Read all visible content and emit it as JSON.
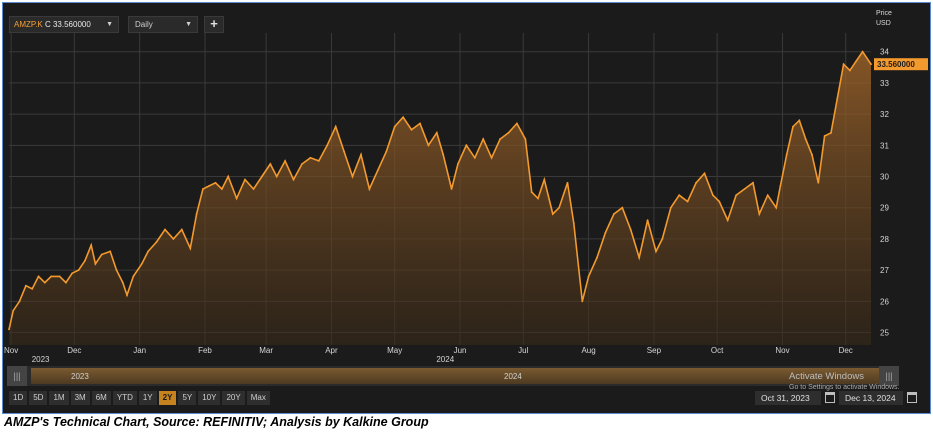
{
  "toolbar": {
    "ric": "AMZP.K",
    "close_label": "C 33.560000",
    "interval": "Daily",
    "add_label": "+"
  },
  "price_axis": {
    "title": "Price",
    "unit": "USD",
    "last_value": "33.560000"
  },
  "navigator": {
    "years": [
      "2023",
      "2024"
    ]
  },
  "watermark": {
    "title": "Activate Windows",
    "subtitle": "Go to Settings to activate Windows."
  },
  "range_buttons": [
    "1D",
    "5D",
    "1M",
    "3M",
    "6M",
    "YTD",
    "1Y",
    "2Y",
    "5Y",
    "10Y",
    "20Y",
    "Max"
  ],
  "active_range": "2Y",
  "date_from": "Oct 31, 2023",
  "date_to": "Dec 13, 2024",
  "caption": "AMZP's Technical Chart, Source: REFINITIV; Analysis by Kalkine Group",
  "colors": {
    "line": "#f39a2e",
    "background": "#1b1b1b",
    "grid": "#3a3a3a",
    "label_box": "#f39a2e"
  },
  "chart_data": {
    "type": "area",
    "title": "",
    "xlabel": "",
    "ylabel": "Price USD",
    "ylim": [
      24.6,
      34.6
    ],
    "yticks": [
      25,
      26,
      27,
      28,
      29,
      30,
      31,
      32,
      33,
      34
    ],
    "xlim": [
      "2023-10-31",
      "2024-12-13"
    ],
    "x_ticks": [
      {
        "label": "Nov",
        "date": "2023-11-01"
      },
      {
        "label": "Dec",
        "date": "2023-12-01"
      },
      {
        "label": "Jan",
        "date": "2024-01-01"
      },
      {
        "label": "Feb",
        "date": "2024-02-01"
      },
      {
        "label": "Mar",
        "date": "2024-03-01"
      },
      {
        "label": "Apr",
        "date": "2024-04-01"
      },
      {
        "label": "May",
        "date": "2024-05-01"
      },
      {
        "label": "Jun",
        "date": "2024-06-01"
      },
      {
        "label": "Jul",
        "date": "2024-07-01"
      },
      {
        "label": "Aug",
        "date": "2024-08-01"
      },
      {
        "label": "Sep",
        "date": "2024-09-01"
      },
      {
        "label": "Oct",
        "date": "2024-10-01"
      },
      {
        "label": "Nov",
        "date": "2024-11-01"
      },
      {
        "label": "Dec",
        "date": "2024-12-01"
      }
    ],
    "year_labels": [
      {
        "label": "2023",
        "date": "2023-11-15"
      },
      {
        "label": "2024",
        "date": "2024-05-25"
      }
    ],
    "series": [
      {
        "values": [
          [
            "2023-10-31",
            25.1
          ],
          [
            "2023-11-02",
            25.7
          ],
          [
            "2023-11-05",
            26.0
          ],
          [
            "2023-11-08",
            26.5
          ],
          [
            "2023-11-11",
            26.4
          ],
          [
            "2023-11-14",
            26.8
          ],
          [
            "2023-11-17",
            26.6
          ],
          [
            "2023-11-20",
            26.8
          ],
          [
            "2023-11-24",
            26.8
          ],
          [
            "2023-11-27",
            26.6
          ],
          [
            "2023-11-30",
            26.9
          ],
          [
            "2023-12-03",
            27.0
          ],
          [
            "2023-12-06",
            27.3
          ],
          [
            "2023-12-09",
            27.8
          ],
          [
            "2023-12-11",
            27.2
          ],
          [
            "2023-12-14",
            27.5
          ],
          [
            "2023-12-18",
            27.6
          ],
          [
            "2023-12-21",
            27.0
          ],
          [
            "2023-12-24",
            26.6
          ],
          [
            "2023-12-26",
            26.2
          ],
          [
            "2023-12-29",
            26.8
          ],
          [
            "2024-01-02",
            27.2
          ],
          [
            "2024-01-05",
            27.6
          ],
          [
            "2024-01-09",
            27.9
          ],
          [
            "2024-01-13",
            28.3
          ],
          [
            "2024-01-17",
            28.0
          ],
          [
            "2024-01-21",
            28.3
          ],
          [
            "2024-01-25",
            27.7
          ],
          [
            "2024-01-28",
            28.8
          ],
          [
            "2024-01-31",
            29.6
          ],
          [
            "2024-02-03",
            29.7
          ],
          [
            "2024-02-06",
            29.8
          ],
          [
            "2024-02-09",
            29.6
          ],
          [
            "2024-02-12",
            30.0
          ],
          [
            "2024-02-16",
            29.3
          ],
          [
            "2024-02-20",
            29.9
          ],
          [
            "2024-02-24",
            29.6
          ],
          [
            "2024-02-28",
            30.0
          ],
          [
            "2024-03-03",
            30.4
          ],
          [
            "2024-03-06",
            30.0
          ],
          [
            "2024-03-10",
            30.5
          ],
          [
            "2024-03-14",
            29.9
          ],
          [
            "2024-03-18",
            30.4
          ],
          [
            "2024-03-22",
            30.6
          ],
          [
            "2024-03-26",
            30.5
          ],
          [
            "2024-03-30",
            31.0
          ],
          [
            "2024-04-03",
            31.6
          ],
          [
            "2024-04-07",
            30.8
          ],
          [
            "2024-04-11",
            30.0
          ],
          [
            "2024-04-15",
            30.7
          ],
          [
            "2024-04-19",
            29.6
          ],
          [
            "2024-04-23",
            30.2
          ],
          [
            "2024-04-27",
            30.8
          ],
          [
            "2024-05-01",
            31.6
          ],
          [
            "2024-05-05",
            31.9
          ],
          [
            "2024-05-09",
            31.5
          ],
          [
            "2024-05-13",
            31.7
          ],
          [
            "2024-05-17",
            31.0
          ],
          [
            "2024-05-21",
            31.4
          ],
          [
            "2024-05-24",
            30.7
          ],
          [
            "2024-05-28",
            29.6
          ],
          [
            "2024-05-31",
            30.4
          ],
          [
            "2024-06-04",
            31.0
          ],
          [
            "2024-06-08",
            30.6
          ],
          [
            "2024-06-12",
            31.2
          ],
          [
            "2024-06-16",
            30.6
          ],
          [
            "2024-06-20",
            31.2
          ],
          [
            "2024-06-24",
            31.4
          ],
          [
            "2024-06-28",
            31.7
          ],
          [
            "2024-07-02",
            31.2
          ],
          [
            "2024-07-05",
            29.5
          ],
          [
            "2024-07-08",
            29.3
          ],
          [
            "2024-07-11",
            29.9
          ],
          [
            "2024-07-15",
            28.8
          ],
          [
            "2024-07-18",
            29.0
          ],
          [
            "2024-07-22",
            29.8
          ],
          [
            "2024-07-25",
            28.5
          ],
          [
            "2024-07-29",
            26.0
          ],
          [
            "2024-08-01",
            26.8
          ],
          [
            "2024-08-05",
            27.4
          ],
          [
            "2024-08-09",
            28.2
          ],
          [
            "2024-08-13",
            28.8
          ],
          [
            "2024-08-17",
            29.0
          ],
          [
            "2024-08-21",
            28.3
          ],
          [
            "2024-08-25",
            27.4
          ],
          [
            "2024-08-29",
            28.6
          ],
          [
            "2024-09-02",
            27.6
          ],
          [
            "2024-09-05",
            28.0
          ],
          [
            "2024-09-09",
            29.0
          ],
          [
            "2024-09-13",
            29.4
          ],
          [
            "2024-09-17",
            29.2
          ],
          [
            "2024-09-21",
            29.8
          ],
          [
            "2024-09-25",
            30.1
          ],
          [
            "2024-09-29",
            29.4
          ],
          [
            "2024-10-02",
            29.2
          ],
          [
            "2024-10-06",
            28.6
          ],
          [
            "2024-10-10",
            29.4
          ],
          [
            "2024-10-14",
            29.6
          ],
          [
            "2024-10-18",
            29.8
          ],
          [
            "2024-10-21",
            28.8
          ],
          [
            "2024-10-25",
            29.4
          ],
          [
            "2024-10-29",
            29.0
          ],
          [
            "2024-10-31",
            29.7
          ],
          [
            "2024-11-03",
            30.7
          ],
          [
            "2024-11-06",
            31.6
          ],
          [
            "2024-11-09",
            31.8
          ],
          [
            "2024-11-12",
            31.2
          ],
          [
            "2024-11-15",
            30.7
          ],
          [
            "2024-11-18",
            29.8
          ],
          [
            "2024-11-21",
            31.3
          ],
          [
            "2024-11-24",
            31.4
          ],
          [
            "2024-11-27",
            32.5
          ],
          [
            "2024-11-30",
            33.6
          ],
          [
            "2024-12-03",
            33.4
          ],
          [
            "2024-12-06",
            33.7
          ],
          [
            "2024-12-09",
            34.0
          ],
          [
            "2024-12-13",
            33.6
          ]
        ]
      }
    ],
    "grid": true,
    "last_value_label": "33.560000"
  }
}
